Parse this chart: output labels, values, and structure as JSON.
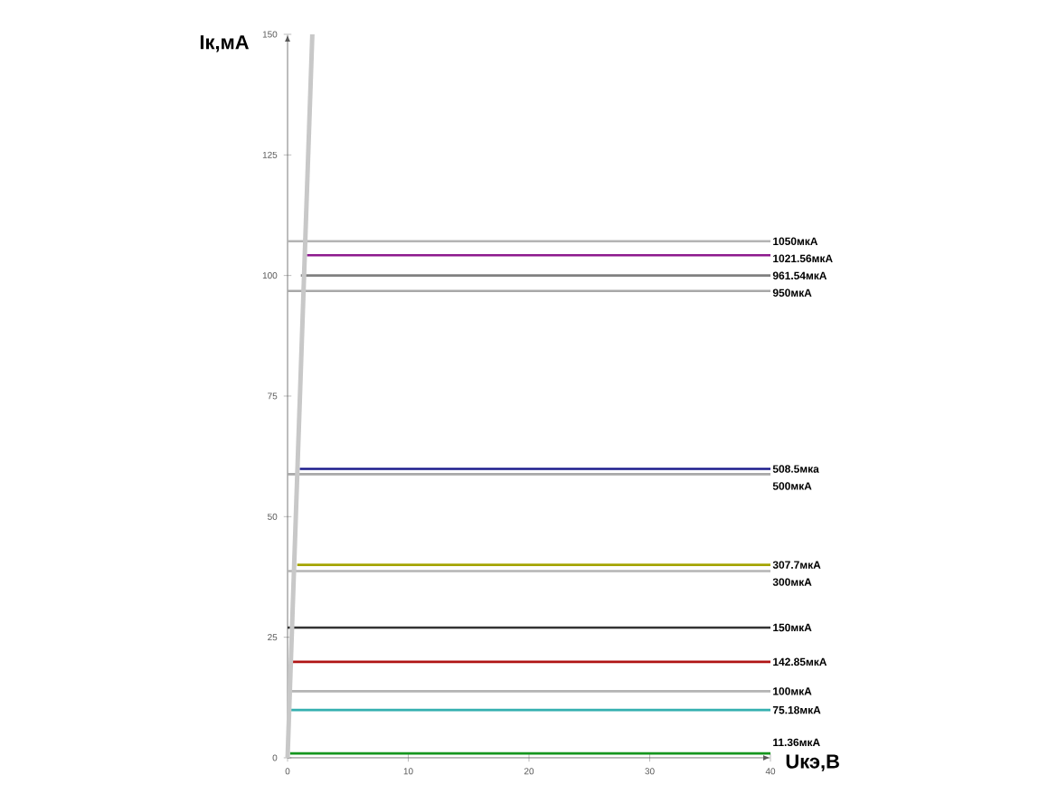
{
  "chart_data": {
    "type": "line",
    "xlabel": "Uкэ,В",
    "ylabel": "Iк,мА",
    "xlim": [
      0,
      40
    ],
    "ylim": [
      0,
      150
    ],
    "xticks": [
      0,
      10,
      20,
      30,
      40
    ],
    "yticks": [
      0,
      25,
      50,
      75,
      100,
      125,
      150
    ],
    "grid": false,
    "legend": false,
    "marker": "none",
    "line_style": "solid",
    "series": [
      {
        "name": "1050мкА",
        "color": "#b4b4b4",
        "x": [
          0,
          40
        ],
        "values": [
          107.1,
          107.1
        ]
      },
      {
        "name": "1021.56мкА",
        "color": "#8e1a8e",
        "x": [
          1.6,
          40
        ],
        "values": [
          104.2,
          104.2
        ]
      },
      {
        "name": "961.54мкА",
        "color": "#808080",
        "x": [
          1.1,
          40
        ],
        "values": [
          100,
          100
        ]
      },
      {
        "name": "950мкА",
        "color": "#a8a8a8",
        "x": [
          0,
          40
        ],
        "values": [
          96.8,
          96.8
        ]
      },
      {
        "name": "508.5мка",
        "color": "#1c1c8c",
        "x": [
          1.0,
          40
        ],
        "values": [
          59.9,
          59.9
        ]
      },
      {
        "name": "500мкА",
        "color": "#a8a8a8",
        "x": [
          0,
          40
        ],
        "values": [
          58.8,
          58.8
        ]
      },
      {
        "name": "307.7мкА",
        "color": "#a4a400",
        "x": [
          0.8,
          40
        ],
        "values": [
          40.0,
          40.0
        ]
      },
      {
        "name": "300мкА",
        "color": "#b4b4b4",
        "x": [
          0,
          40
        ],
        "values": [
          38.7,
          38.7
        ]
      },
      {
        "name": "150мкА",
        "color": "#333333",
        "x": [
          0,
          40
        ],
        "values": [
          27.0,
          27.0
        ]
      },
      {
        "name": "142.85мкА",
        "color": "#b01414",
        "x": [
          0.3,
          40
        ],
        "values": [
          19.9,
          19.9
        ]
      },
      {
        "name": "100мкА",
        "color": "#b4b4b4",
        "x": [
          0,
          40
        ],
        "values": [
          13.8,
          13.8
        ]
      },
      {
        "name": "75.18мкА",
        "color": "#34b0b0",
        "x": [
          0,
          40
        ],
        "values": [
          9.9,
          9.9
        ]
      },
      {
        "name": "11.36мкА",
        "color": "#14961e",
        "x": [
          0.2,
          40
        ],
        "values": [
          0.9,
          0.9
        ]
      },
      {
        "color": "#c8c8c8",
        "x": [
          0,
          2.05
        ],
        "values": [
          0,
          150
        ]
      }
    ]
  }
}
